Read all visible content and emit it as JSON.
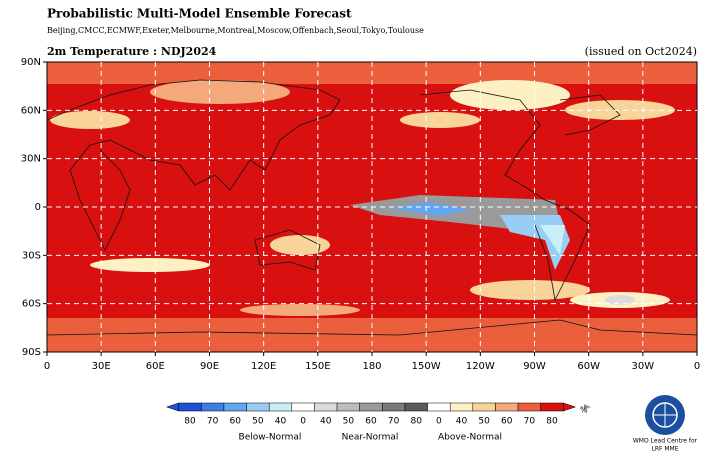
{
  "header": {
    "title": "Probabilistic Multi-Model Ensemble Forecast",
    "centres": "Beijing,CMCC,ECMWF,Exeter,Melbourne,Montreal,Moscow,Offenbach,Seoul,Tokyo,Toulouse"
  },
  "map": {
    "variable": "2m Temperature : NDJ2024",
    "issued": "(issued on Oct2024)",
    "lat_labels": [
      "90N",
      "60N",
      "30N",
      "0",
      "30S",
      "60S",
      "90S"
    ],
    "lon_labels": [
      "0",
      "30E",
      "60E",
      "90E",
      "120E",
      "150E",
      "180",
      "150W",
      "120W",
      "90W",
      "60W",
      "30W",
      "0"
    ]
  },
  "legend": {
    "labels": [
      "80",
      "70",
      "60",
      "50",
      "40",
      "0",
      "40",
      "50",
      "60",
      "70",
      "80",
      "0",
      "40",
      "50",
      "60",
      "70",
      "80"
    ],
    "colors": [
      "#1e4fd8",
      "#3a7fe6",
      "#62a6ef",
      "#98cdf4",
      "#c9eef8",
      "#ffffff",
      "#dcdcdc",
      "#bdbdbd",
      "#9a9a9a",
      "#7a7a7a",
      "#5a5a5a",
      "#ffffff",
      "#fdf1c4",
      "#f9d49a",
      "#f4a97c",
      "#ec5f3c",
      "#d81010"
    ],
    "unit": "%",
    "groups": [
      "Below-Normal",
      "Near-Normal",
      "Above-Normal"
    ]
  },
  "logo": {
    "line1": "WMO Lead Centre for",
    "line2": "LRF MME"
  }
}
